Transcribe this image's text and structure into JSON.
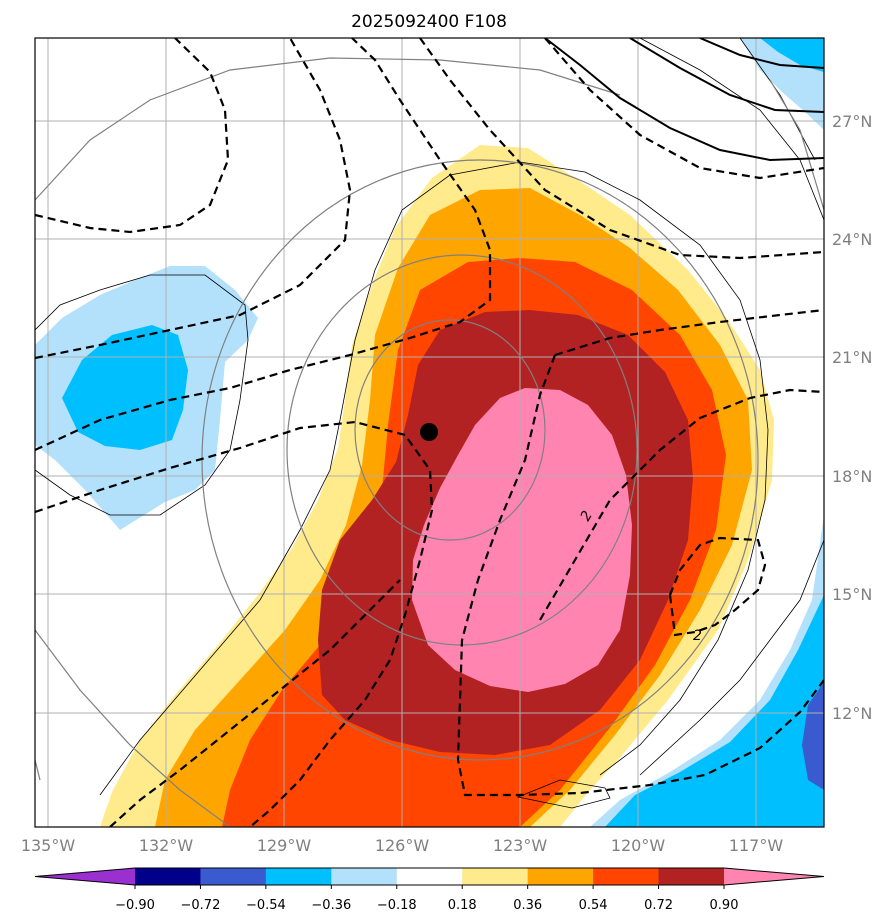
{
  "chart_data": {
    "type": "map-contour",
    "title": "2025092400 F108",
    "axes": {
      "lon_ticks": [
        "135°W",
        "132°W",
        "129°W",
        "126°W",
        "123°W",
        "120°W",
        "117°W"
      ],
      "lat_ticks": [
        "27°N",
        "24°N",
        "21°N",
        "18°N",
        "15°N",
        "12°N"
      ],
      "lon_range": [
        -135,
        -115
      ],
      "lat_range": [
        9.5,
        29.5
      ],
      "grid": true
    },
    "colorbar": {
      "ticks": [
        "−0.90",
        "−0.72",
        "−0.54",
        "−0.36",
        "−0.18",
        "0.18",
        "0.36",
        "0.54",
        "0.72",
        "0.90"
      ],
      "bins": [
        {
          "range": "< -0.90",
          "color": "#9b30d0"
        },
        {
          "range": "-0.90 to -0.72",
          "color": "#00008b"
        },
        {
          "range": "-0.72 to -0.54",
          "color": "#3a5bd0"
        },
        {
          "range": "-0.54 to -0.36",
          "color": "#00bfff"
        },
        {
          "range": "-0.36 to -0.18",
          "color": "#b3e1fb"
        },
        {
          "range": "-0.18 to 0.18",
          "color": "#ffffff"
        },
        {
          "range": "0.18 to 0.36",
          "color": "#ffea8c"
        },
        {
          "range": "0.36 to 0.54",
          "color": "#ffa500"
        },
        {
          "range": "0.54 to 0.72",
          "color": "#ff4500"
        },
        {
          "range": "0.72 to 0.90",
          "color": "#b22222"
        },
        {
          "range": "> 0.90",
          "color": "#ff85b0"
        }
      ]
    },
    "storm_center": {
      "lon": -125.4,
      "lat": 19.1
    },
    "dashed_contour_labels": [
      "2",
      "2"
    ]
  }
}
